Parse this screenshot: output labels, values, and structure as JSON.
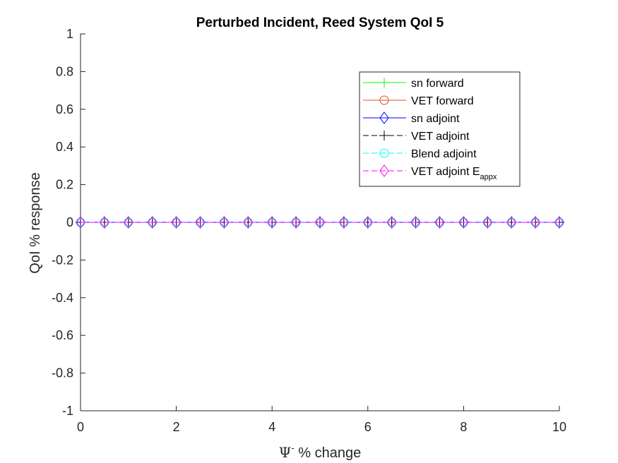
{
  "chart_data": {
    "type": "line",
    "title": "Perturbed Incident, Reed System QoI 5",
    "xlabel": {
      "symbol": "Ψ",
      "superscript": "-",
      "text": " % change"
    },
    "ylabel": "QoI % response",
    "xlim": [
      0,
      10
    ],
    "ylim": [
      -1,
      1
    ],
    "x_ticks": [
      0,
      2,
      4,
      6,
      8,
      10
    ],
    "x_tick_labels": [
      "0",
      "2",
      "4",
      "6",
      "8",
      "10"
    ],
    "y_ticks": [
      -1,
      -0.8,
      -0.6,
      -0.4,
      -0.2,
      0,
      0.2,
      0.4,
      0.6,
      0.8,
      1
    ],
    "y_tick_labels": [
      "-1",
      "-0.8",
      "-0.6",
      "-0.4",
      "-0.2",
      "0",
      "0.2",
      "0.4",
      "0.6",
      "0.8",
      "1"
    ],
    "grid": false,
    "legend_position": "top-right",
    "x": [
      0,
      0.5,
      1,
      1.5,
      2,
      2.5,
      3,
      3.5,
      4,
      4.5,
      5,
      5.5,
      6,
      6.5,
      7,
      7.5,
      8,
      8.5,
      9,
      9.5,
      10
    ],
    "series": [
      {
        "name": "sn forward",
        "sub": "",
        "color": "#00ff00",
        "dash": "solid",
        "marker": "plus",
        "values": [
          0,
          0,
          0,
          0,
          0,
          0,
          0,
          0,
          0,
          0,
          0,
          0,
          0,
          0,
          0,
          0,
          0,
          0,
          0,
          0,
          0
        ]
      },
      {
        "name": "VET forward",
        "sub": "",
        "color": "#d95319",
        "dash": "solid",
        "marker": "circle",
        "values": [
          0,
          0,
          0,
          0,
          0,
          0,
          0,
          0,
          0,
          0,
          0,
          0,
          0,
          0,
          0,
          0,
          0,
          0,
          0,
          0,
          0
        ]
      },
      {
        "name": "sn adjoint",
        "sub": "",
        "color": "#0000ff",
        "dash": "solid",
        "marker": "diamond",
        "values": [
          0,
          0,
          0,
          0,
          0,
          0,
          0,
          0,
          0,
          0,
          0,
          0,
          0,
          0,
          0,
          0,
          0,
          0,
          0,
          0,
          0
        ]
      },
      {
        "name": "VET adjoint",
        "sub": "",
        "color": "#000000",
        "dash": "dashed",
        "marker": "plus",
        "values": [
          0,
          0,
          0,
          0,
          0,
          0,
          0,
          0,
          0,
          0,
          0,
          0,
          0,
          0,
          0,
          0,
          0,
          0,
          0,
          0,
          0
        ]
      },
      {
        "name": "Blend adjoint",
        "sub": "",
        "color": "#00ffff",
        "dash": "dashed",
        "marker": "circle",
        "values": [
          0,
          0,
          0,
          0,
          0,
          0,
          0,
          0,
          0,
          0,
          0,
          0,
          0,
          0,
          0,
          0,
          0,
          0,
          0,
          0,
          0
        ]
      },
      {
        "name": "VET adjoint E",
        "sub": "appx",
        "color": "#ff00ff",
        "dash": "dashed",
        "marker": "diamond",
        "values": [
          0,
          0,
          0,
          0,
          0,
          0,
          0,
          0,
          0,
          0,
          0,
          0,
          0,
          0,
          0,
          0,
          0,
          0,
          0,
          0,
          0
        ]
      }
    ]
  }
}
